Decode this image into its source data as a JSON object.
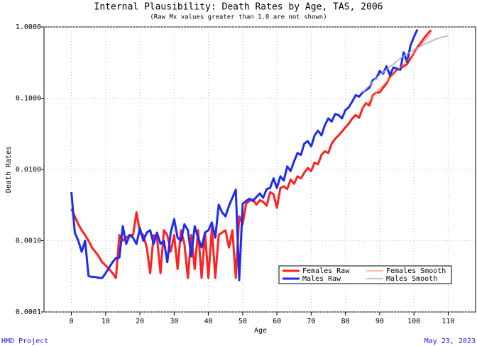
{
  "chart_data": {
    "type": "line",
    "title": "Internal Plausibility: Death Rates by Age, TAS, 2006",
    "subtitle": "(Raw Mx values greater than 1.0 are not shown)",
    "x_label": "Age",
    "y_label": "Death Rates",
    "footer_left": "HMD Project",
    "footer_right": "May 23, 2023",
    "log_y": true,
    "grid": true,
    "legend": "lower right",
    "xlim": [
      -8,
      118
    ],
    "xticks": [
      0,
      10,
      20,
      30,
      40,
      50,
      60,
      70,
      80,
      90,
      100,
      110
    ],
    "ylim": [
      0.0001,
      1
    ],
    "yticks": [
      {
        "value": 0.0001,
        "label": "0.0001"
      },
      {
        "value": 0.001,
        "label": "0.0010"
      },
      {
        "value": 0.01,
        "label": "0.0100"
      },
      {
        "value": 0.1,
        "label": "0.1000"
      },
      {
        "value": 1,
        "label": "1.0000"
      }
    ],
    "series": [
      {
        "name": "Females Raw",
        "color": "#ff2020",
        "width": 3,
        "x": [
          0,
          1,
          2,
          3,
          4,
          5,
          6,
          7,
          8,
          9,
          10,
          11,
          12,
          13,
          14,
          15,
          16,
          17,
          18,
          19,
          20,
          21,
          22,
          23,
          24,
          25,
          26,
          27,
          28,
          29,
          30,
          31,
          32,
          33,
          34,
          35,
          36,
          37,
          38,
          39,
          40,
          41,
          42,
          43,
          44,
          45,
          46,
          47,
          48,
          49,
          50,
          51,
          52,
          53,
          54,
          55,
          56,
          57,
          58,
          59,
          60,
          61,
          62,
          63,
          64,
          65,
          66,
          67,
          68,
          69,
          70,
          71,
          72,
          73,
          74,
          75,
          76,
          77,
          78,
          79,
          80,
          81,
          82,
          83,
          84,
          85,
          86,
          87,
          88,
          89,
          90,
          91,
          92,
          93,
          94,
          95,
          96,
          97,
          98,
          99,
          100,
          101,
          102,
          103,
          104,
          105
        ],
        "values": [
          0.0028,
          0.0022,
          0.0017,
          0.0014,
          0.0012,
          0.001,
          0.0008,
          0.0007,
          0.0006,
          0.0005,
          0.00045,
          0.0004,
          0.00035,
          0.0003,
          0.0012,
          0.001,
          0.0011,
          0.0012,
          0.0012,
          0.0025,
          0.0013,
          0.0012,
          0.0008,
          0.00035,
          0.0012,
          0.0011,
          0.00035,
          0.0014,
          0.0012,
          0.0007,
          0.0012,
          0.0004,
          0.0014,
          0.0009,
          0.0003,
          0.0012,
          0.0004,
          0.0014,
          0.0003,
          0.0013,
          0.0003,
          0.0015,
          0.0003,
          0.0012,
          0.0013,
          0.0014,
          0.0008,
          0.0014,
          0.0003,
          0.0022,
          0.0017,
          0.0033,
          0.0036,
          0.0038,
          0.0032,
          0.0037,
          0.0035,
          0.0031,
          0.0048,
          0.0045,
          0.0029,
          0.0055,
          0.0058,
          0.0053,
          0.0072,
          0.0063,
          0.008,
          0.0075,
          0.009,
          0.0105,
          0.0095,
          0.0125,
          0.0118,
          0.016,
          0.018,
          0.017,
          0.023,
          0.027,
          0.03,
          0.034,
          0.039,
          0.044,
          0.052,
          0.058,
          0.053,
          0.072,
          0.085,
          0.079,
          0.11,
          0.12,
          0.12,
          0.14,
          0.16,
          0.2,
          0.22,
          0.25,
          0.26,
          0.28,
          0.3,
          0.36,
          0.43,
          0.52,
          0.6,
          0.7,
          0.8,
          0.9
        ]
      },
      {
        "name": "Males Raw",
        "color": "#1c2cf0",
        "width": 3,
        "x": [
          0,
          1,
          2,
          3,
          4,
          5,
          6,
          7,
          8,
          9,
          10,
          11,
          12,
          13,
          14,
          15,
          16,
          17,
          18,
          19,
          20,
          21,
          22,
          23,
          24,
          25,
          26,
          27,
          28,
          29,
          30,
          31,
          32,
          33,
          34,
          35,
          36,
          37,
          38,
          39,
          40,
          41,
          42,
          43,
          44,
          45,
          46,
          47,
          48,
          49,
          50,
          51,
          52,
          53,
          54,
          55,
          56,
          57,
          58,
          59,
          60,
          61,
          62,
          63,
          64,
          65,
          66,
          67,
          68,
          69,
          70,
          71,
          72,
          73,
          74,
          75,
          76,
          77,
          78,
          79,
          80,
          81,
          82,
          83,
          84,
          85,
          86,
          87,
          88,
          89,
          90,
          91,
          92,
          93,
          94,
          95,
          96,
          97,
          98,
          99,
          100,
          101
        ],
        "values": [
          0.0048,
          0.0013,
          0.001,
          0.0007,
          0.001,
          0.00032,
          0.00031,
          0.00031,
          0.0003,
          0.0003,
          0.00035,
          0.00042,
          0.0005,
          0.00057,
          0.00058,
          0.0016,
          0.0009,
          0.0012,
          0.0011,
          0.0009,
          0.0015,
          0.001,
          0.0013,
          0.0014,
          0.0009,
          0.0013,
          0.0009,
          0.001,
          0.0005,
          0.0013,
          0.002,
          0.0011,
          0.001,
          0.0017,
          0.0014,
          0.0006,
          0.0016,
          0.0011,
          0.0008,
          0.0013,
          0.0014,
          0.0018,
          0.0011,
          0.0032,
          0.0025,
          0.0022,
          0.0031,
          0.004,
          0.0052,
          0.00028,
          0.0033,
          0.0036,
          0.0039,
          0.0036,
          0.0041,
          0.0046,
          0.004,
          0.0053,
          0.0055,
          0.0075,
          0.0055,
          0.008,
          0.007,
          0.011,
          0.0095,
          0.013,
          0.017,
          0.016,
          0.023,
          0.025,
          0.021,
          0.03,
          0.035,
          0.03,
          0.042,
          0.052,
          0.047,
          0.06,
          0.058,
          0.052,
          0.068,
          0.075,
          0.09,
          0.11,
          0.105,
          0.12,
          0.13,
          0.14,
          0.18,
          0.19,
          0.24,
          0.22,
          0.28,
          0.21,
          0.27,
          0.26,
          0.25,
          0.44,
          0.32,
          0.55,
          0.72,
          0.92
        ]
      },
      {
        "name": "Females Smooth",
        "color": "#ff7a50",
        "width": 1,
        "x": [
          85,
          86,
          87,
          88,
          89,
          90,
          91,
          92,
          93,
          94,
          95,
          96,
          97,
          98,
          99,
          100,
          101,
          102,
          103,
          104,
          105
        ],
        "values": [
          0.07,
          0.08,
          0.09,
          0.105,
          0.12,
          0.135,
          0.15,
          0.17,
          0.19,
          0.215,
          0.24,
          0.27,
          0.3,
          0.34,
          0.38,
          0.43,
          0.49,
          0.55,
          0.63,
          0.72,
          0.82
        ]
      },
      {
        "name": "Males Smooth",
        "color": "#a8a8d8",
        "width": 1.5,
        "x": [
          85,
          86,
          87,
          88,
          89,
          90,
          91,
          92,
          93,
          94,
          95,
          96,
          97,
          98,
          99,
          100,
          101,
          102,
          103,
          104,
          105,
          106,
          107,
          108,
          109,
          110
        ],
        "values": [
          0.12,
          0.135,
          0.15,
          0.17,
          0.19,
          0.21,
          0.23,
          0.25,
          0.28,
          0.3,
          0.33,
          0.36,
          0.39,
          0.42,
          0.45,
          0.48,
          0.51,
          0.54,
          0.57,
          0.6,
          0.63,
          0.66,
          0.69,
          0.71,
          0.73,
          0.75
        ]
      }
    ]
  }
}
